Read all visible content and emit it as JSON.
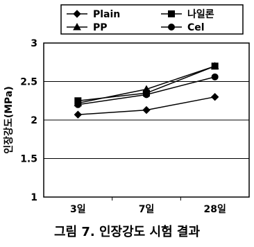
{
  "caption": "그림 7. 인장강도 시험 결과",
  "chart_data": {
    "type": "line",
    "title": "",
    "xlabel": "",
    "ylabel": "인장강도(MPa)",
    "categories": [
      "3일",
      "7일",
      "28일"
    ],
    "ylim": [
      1,
      3
    ],
    "yticks": [
      "1",
      "1.5",
      "2",
      "2.5",
      "3"
    ],
    "grid": true,
    "legend_position": "top",
    "series": [
      {
        "name": "Plain",
        "marker": "diamond",
        "values": [
          2.07,
          2.13,
          2.3
        ]
      },
      {
        "name": "나일론",
        "marker": "square",
        "values": [
          2.25,
          2.35,
          2.7
        ]
      },
      {
        "name": "PP",
        "marker": "triangle",
        "values": [
          2.22,
          2.4,
          2.7
        ]
      },
      {
        "name": "Cel",
        "marker": "circle",
        "values": [
          2.2,
          2.33,
          2.56
        ]
      }
    ]
  }
}
